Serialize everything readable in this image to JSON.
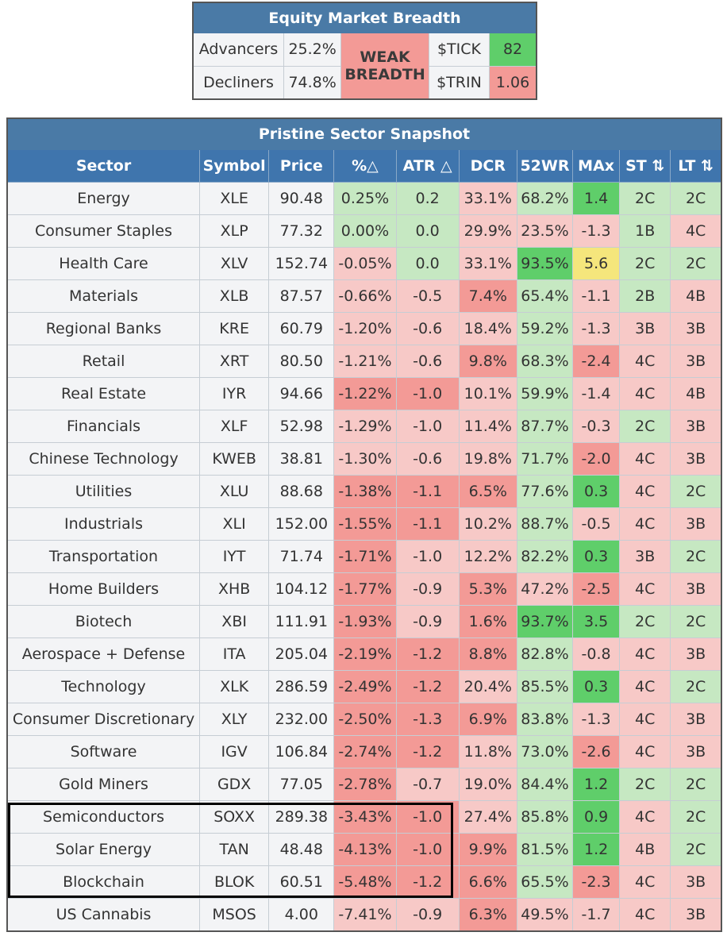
{
  "breadth": {
    "title": "Equity Market Breadth",
    "advancers_label": "Advancers",
    "advancers_value": "25.2%",
    "decliners_label": "Decliners",
    "decliners_value": "74.8%",
    "signal_line1": "WEAK",
    "signal_line2": "BREADTH",
    "tick_label": "$TICK",
    "tick_value": "82",
    "trin_label": "$TRIN",
    "trin_value": "1.06"
  },
  "snapshot": {
    "title": "Pristine Sector Snapshot",
    "columns": [
      "Sector",
      "Symbol",
      "Price",
      "%△",
      "ATR △",
      "DCR",
      "52WR",
      "MAx",
      "ST ⇅",
      "LT ⇅"
    ],
    "rows": [
      [
        "Energy",
        "XLE",
        "90.48",
        "0.25%",
        "0.2",
        "33.1%",
        "68.2%",
        "1.4",
        "2C",
        "2C"
      ],
      [
        "Consumer Staples",
        "XLP",
        "77.32",
        "0.00%",
        "0.0",
        "29.9%",
        "23.5%",
        "-1.3",
        "1B",
        "4C"
      ],
      [
        "Health Care",
        "XLV",
        "152.74",
        "-0.05%",
        "0.0",
        "33.1%",
        "93.5%",
        "5.6",
        "2C",
        "2C"
      ],
      [
        "Materials",
        "XLB",
        "87.57",
        "-0.66%",
        "-0.5",
        "7.4%",
        "65.4%",
        "-1.1",
        "2B",
        "4B"
      ],
      [
        "Regional Banks",
        "KRE",
        "60.79",
        "-1.20%",
        "-0.6",
        "18.4%",
        "59.2%",
        "-1.3",
        "3B",
        "3B"
      ],
      [
        "Retail",
        "XRT",
        "80.50",
        "-1.21%",
        "-0.6",
        "9.8%",
        "68.3%",
        "-2.4",
        "4C",
        "3B"
      ],
      [
        "Real Estate",
        "IYR",
        "94.66",
        "-1.22%",
        "-1.0",
        "10.1%",
        "59.9%",
        "-1.4",
        "4C",
        "4B"
      ],
      [
        "Financials",
        "XLF",
        "52.98",
        "-1.29%",
        "-1.0",
        "11.4%",
        "87.7%",
        "-0.3",
        "2C",
        "3B"
      ],
      [
        "Chinese Technology",
        "KWEB",
        "38.81",
        "-1.30%",
        "-0.6",
        "19.8%",
        "71.7%",
        "-2.0",
        "4C",
        "3B"
      ],
      [
        "Utilities",
        "XLU",
        "88.68",
        "-1.38%",
        "-1.1",
        "6.5%",
        "77.6%",
        "0.3",
        "4C",
        "2C"
      ],
      [
        "Industrials",
        "XLI",
        "152.00",
        "-1.55%",
        "-1.1",
        "10.2%",
        "88.7%",
        "-0.5",
        "4C",
        "3B"
      ],
      [
        "Transportation",
        "IYT",
        "71.74",
        "-1.71%",
        "-1.0",
        "12.2%",
        "82.2%",
        "0.3",
        "3B",
        "2C"
      ],
      [
        "Home Builders",
        "XHB",
        "104.12",
        "-1.77%",
        "-0.9",
        "5.3%",
        "47.2%",
        "-2.5",
        "4C",
        "3B"
      ],
      [
        "Biotech",
        "XBI",
        "111.91",
        "-1.93%",
        "-0.9",
        "1.6%",
        "93.7%",
        "3.5",
        "2C",
        "2C"
      ],
      [
        "Aerospace + Defense",
        "ITA",
        "205.04",
        "-2.19%",
        "-1.2",
        "8.8%",
        "82.8%",
        "-0.8",
        "4C",
        "3B"
      ],
      [
        "Technology",
        "XLK",
        "286.59",
        "-2.49%",
        "-1.2",
        "20.4%",
        "85.5%",
        "0.3",
        "4C",
        "2C"
      ],
      [
        "Consumer Discretionary",
        "XLY",
        "232.00",
        "-2.50%",
        "-1.3",
        "6.9%",
        "83.8%",
        "-1.3",
        "4C",
        "3B"
      ],
      [
        "Software",
        "IGV",
        "106.84",
        "-2.74%",
        "-1.2",
        "11.8%",
        "73.0%",
        "-2.6",
        "4C",
        "3B"
      ],
      [
        "Gold Miners",
        "GDX",
        "77.05",
        "-2.78%",
        "-0.7",
        "19.0%",
        "84.4%",
        "1.2",
        "2C",
        "2C"
      ],
      [
        "Semiconductors",
        "SOXX",
        "289.38",
        "-3.43%",
        "-1.0",
        "27.4%",
        "85.8%",
        "0.9",
        "4C",
        "2C"
      ],
      [
        "Solar Energy",
        "TAN",
        "48.48",
        "-4.13%",
        "-1.0",
        "9.9%",
        "81.5%",
        "1.2",
        "4B",
        "2C"
      ],
      [
        "Blockchain",
        "BLOK",
        "60.51",
        "-5.48%",
        "-1.2",
        "6.6%",
        "65.5%",
        "-2.3",
        "4C",
        "3B"
      ],
      [
        "US Cannabis",
        "MSOS",
        "4.00",
        "-7.41%",
        "-0.9",
        "6.3%",
        "49.5%",
        "-1.7",
        "4C",
        "3B"
      ]
    ],
    "colors": {
      "g1": "#c6e8c2",
      "g2": "#a9dba5",
      "g3": "#5fce6a",
      "r1": "#f7c9c7",
      "r2": "#f39a96",
      "y": "#f5e67c"
    },
    "cell_colors": [
      [
        "",
        "",
        "",
        "g1",
        "g1",
        "r1",
        "g1",
        "g3",
        "g1",
        "g1"
      ],
      [
        "",
        "",
        "",
        "g1",
        "g1",
        "r1",
        "r1",
        "r1",
        "g1",
        "r1"
      ],
      [
        "",
        "",
        "",
        "r1",
        "g1",
        "r1",
        "g3",
        "y",
        "g1",
        "g1"
      ],
      [
        "",
        "",
        "",
        "r1",
        "r1",
        "r2",
        "g1",
        "r1",
        "g1",
        "r1"
      ],
      [
        "",
        "",
        "",
        "r1",
        "r1",
        "r1",
        "g1",
        "r1",
        "r1",
        "r1"
      ],
      [
        "",
        "",
        "",
        "r1",
        "r1",
        "r2",
        "g1",
        "r2",
        "r1",
        "r1"
      ],
      [
        "",
        "",
        "",
        "r2",
        "r2",
        "r1",
        "g1",
        "r1",
        "r1",
        "r1"
      ],
      [
        "",
        "",
        "",
        "r1",
        "r1",
        "r1",
        "g1",
        "r1",
        "g1",
        "r1"
      ],
      [
        "",
        "",
        "",
        "r1",
        "r1",
        "r1",
        "g1",
        "r2",
        "r1",
        "r1"
      ],
      [
        "",
        "",
        "",
        "r2",
        "r2",
        "r2",
        "g1",
        "g3",
        "r1",
        "g1"
      ],
      [
        "",
        "",
        "",
        "r2",
        "r2",
        "r1",
        "g1",
        "r1",
        "r1",
        "r1"
      ],
      [
        "",
        "",
        "",
        "r2",
        "r1",
        "r1",
        "g1",
        "g3",
        "r1",
        "g1"
      ],
      [
        "",
        "",
        "",
        "r2",
        "r1",
        "r2",
        "r1",
        "r2",
        "r1",
        "r1"
      ],
      [
        "",
        "",
        "",
        "r2",
        "r1",
        "r2",
        "g3",
        "g3",
        "g1",
        "g1"
      ],
      [
        "",
        "",
        "",
        "r2",
        "r2",
        "r2",
        "g1",
        "r1",
        "r1",
        "r1"
      ],
      [
        "",
        "",
        "",
        "r2",
        "r2",
        "r1",
        "g1",
        "g3",
        "r1",
        "g1"
      ],
      [
        "",
        "",
        "",
        "r2",
        "r2",
        "r2",
        "g1",
        "r1",
        "r1",
        "r1"
      ],
      [
        "",
        "",
        "",
        "r2",
        "r2",
        "r1",
        "g1",
        "r2",
        "r1",
        "r1"
      ],
      [
        "",
        "",
        "",
        "r2",
        "r1",
        "r1",
        "g1",
        "g3",
        "g1",
        "g1"
      ],
      [
        "",
        "",
        "",
        "r2",
        "r2",
        "r1",
        "g1",
        "g3",
        "r1",
        "g1"
      ],
      [
        "",
        "",
        "",
        "r2",
        "r2",
        "r2",
        "g1",
        "g3",
        "r1",
        "g1"
      ],
      [
        "",
        "",
        "",
        "r2",
        "r2",
        "r2",
        "g1",
        "r2",
        "r1",
        "r1"
      ],
      [
        "",
        "",
        "",
        "r1",
        "r1",
        "r2",
        "r1",
        "r1",
        "r1",
        "r1"
      ]
    ]
  }
}
